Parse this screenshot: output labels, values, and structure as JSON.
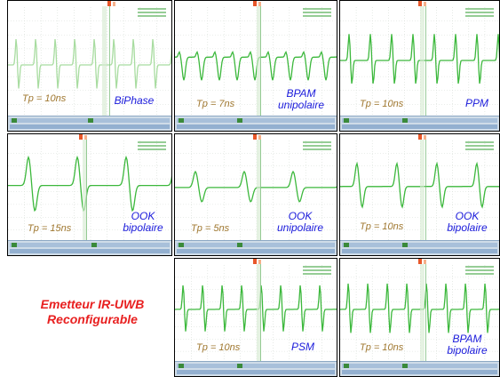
{
  "title": "Emetteur IR-UWB\nReconfigurable",
  "panels": [
    {
      "id": "biphase",
      "tp": "Tp = 10ns",
      "modulation": "BiPhase"
    },
    {
      "id": "bpam-uni",
      "tp": "Tp = 7ns",
      "modulation": "BPAM\nunipolaire"
    },
    {
      "id": "ppm",
      "tp": "Tp = 10ns",
      "modulation": "PPM"
    },
    {
      "id": "ook-bi-15",
      "tp": "Tp = 15ns",
      "modulation": "OOK\nbipolaire"
    },
    {
      "id": "ook-uni",
      "tp": "Tp = 5ns",
      "modulation": "OOK\nunipolaire"
    },
    {
      "id": "ook-bi-10",
      "tp": "Tp = 10ns",
      "modulation": "OOK\nbipolaire"
    },
    {
      "id": "psm",
      "tp": "Tp = 10ns",
      "modulation": "PSM"
    },
    {
      "id": "bpam-bi",
      "tp": "Tp = 10ns",
      "modulation": "BPAM\nbipolaire"
    }
  ],
  "colors": {
    "trace": "#3cb83c",
    "trace_faded": "#a8dca0",
    "grid": "#d6dcd6",
    "title": "#e82020",
    "modulation_label": "#1a1adb",
    "tp_label": "#a07830"
  }
}
